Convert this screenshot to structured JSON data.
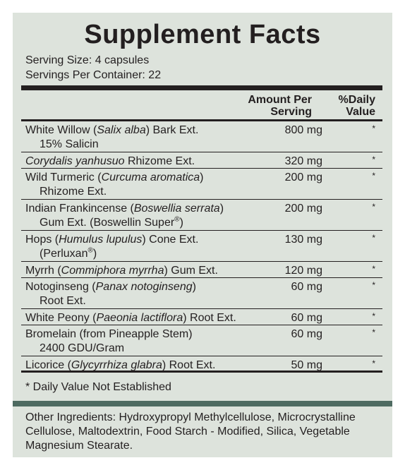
{
  "title": "Supplement Facts",
  "serving_size": "Serving Size: 4 capsules",
  "servings_per_container": "Servings Per Container: 22",
  "header": {
    "amount_line1": "Amount Per",
    "amount_line2": "Serving",
    "dv_line1": "%Daily",
    "dv_line2": "Value"
  },
  "rows": [
    {
      "pre": "White Willow (",
      "latin": "Salix alba",
      "post": ") Bark Ext.",
      "line2": "15% Salicin",
      "amount": "800 mg",
      "dv": "*"
    },
    {
      "pre": "",
      "latin": "Corydalis yanhusuo",
      "post": " Rhizome Ext.",
      "amount": "320 mg",
      "dv": "*"
    },
    {
      "pre": "Wild Turmeric (",
      "latin": "Curcuma aromatica",
      "post": ")",
      "line2": "Rhizome Ext.",
      "amount": "200 mg",
      "dv": "*"
    },
    {
      "pre": "Indian Frankincense (",
      "latin": "Boswellia serrata",
      "post": ")",
      "line2": "Gum Ext. (Boswellin Super",
      "line2_sup": "®",
      "line2_post": ")",
      "amount": "200 mg",
      "dv": "*"
    },
    {
      "pre": "Hops (",
      "latin": "Humulus lupulus",
      "post": ") Cone Ext.",
      "line2": "(Perluxan",
      "line2_sup": "®",
      "line2_post": ")",
      "amount": "130 mg",
      "dv": "*"
    },
    {
      "pre": "Myrrh (",
      "latin": "Commiphora myrrha",
      "post": ") Gum Ext.",
      "amount": "120 mg",
      "dv": "*"
    },
    {
      "pre": "Notoginseng (",
      "latin": "Panax notoginseng",
      "post": ")",
      "line2": "Root Ext.",
      "amount": "60 mg",
      "dv": "*"
    },
    {
      "pre": "White Peony (",
      "latin": "Paeonia lactiflora",
      "post": ") Root Ext.",
      "amount": "60 mg",
      "dv": "*"
    },
    {
      "pre": "Bromelain (from Pineapple Stem)",
      "latin": "",
      "post": "",
      "line2": "2400 GDU/Gram",
      "amount": "60 mg",
      "dv": "*"
    },
    {
      "pre": "Licorice (",
      "latin": "Glycyrrhiza glabra",
      "post": ") Root Ext.",
      "amount": "50 mg",
      "dv": "*"
    }
  ],
  "footnote": "* Daily Value Not Established",
  "other_ingredients": "Other Ingredients: Hydroxypropyl Methylcellulose, Microcrystalline Cellulose, Maltodextrin, Food Starch - Modified, Silica, Vegetable Magnesium Stearate.",
  "colors": {
    "panel_bg": "#dde3dc",
    "band": "#4e6b61",
    "text": "#231f20"
  }
}
